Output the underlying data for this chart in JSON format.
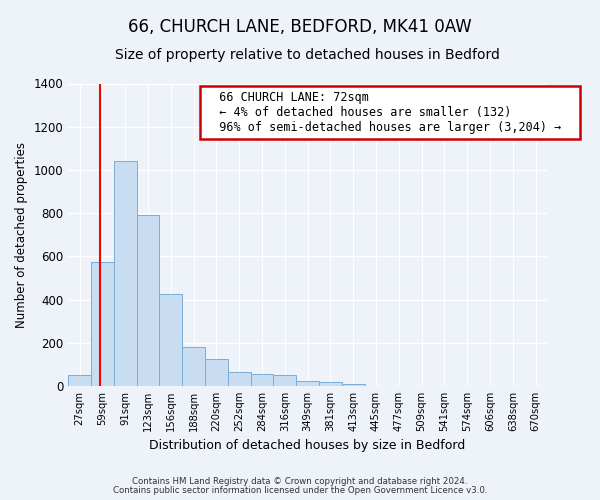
{
  "title": "66, CHURCH LANE, BEDFORD, MK41 0AW",
  "subtitle": "Size of property relative to detached houses in Bedford",
  "xlabel": "Distribution of detached houses by size in Bedford",
  "ylabel": "Number of detached properties",
  "bar_labels": [
    "27sqm",
    "59sqm",
    "91sqm",
    "123sqm",
    "156sqm",
    "188sqm",
    "220sqm",
    "252sqm",
    "284sqm",
    "316sqm",
    "349sqm",
    "381sqm",
    "413sqm",
    "445sqm",
    "477sqm",
    "509sqm",
    "541sqm",
    "574sqm",
    "606sqm",
    "638sqm",
    "670sqm"
  ],
  "bar_values": [
    50,
    575,
    1040,
    790,
    425,
    180,
    125,
    65,
    55,
    50,
    25,
    20,
    8,
    0,
    0,
    0,
    0,
    0,
    0,
    0,
    0
  ],
  "bar_color": "#c9ddf2",
  "bar_edge_color": "#7aaed6",
  "annotation_title": "66 CHURCH LANE: 72sqm",
  "annotation_line1": "← 4% of detached houses are smaller (132)",
  "annotation_line2": "96% of semi-detached houses are larger (3,204) →",
  "annotation_box_color": "#ffffff",
  "annotation_box_edge": "#cc0000",
  "ylim": [
    0,
    1400
  ],
  "yticks": [
    0,
    200,
    400,
    600,
    800,
    1000,
    1200,
    1400
  ],
  "footnote1": "Contains HM Land Registry data © Crown copyright and database right 2024.",
  "footnote2": "Contains public sector information licensed under the Open Government Licence v3.0.",
  "title_fontsize": 12,
  "subtitle_fontsize": 10,
  "background_color": "#eef2f9"
}
